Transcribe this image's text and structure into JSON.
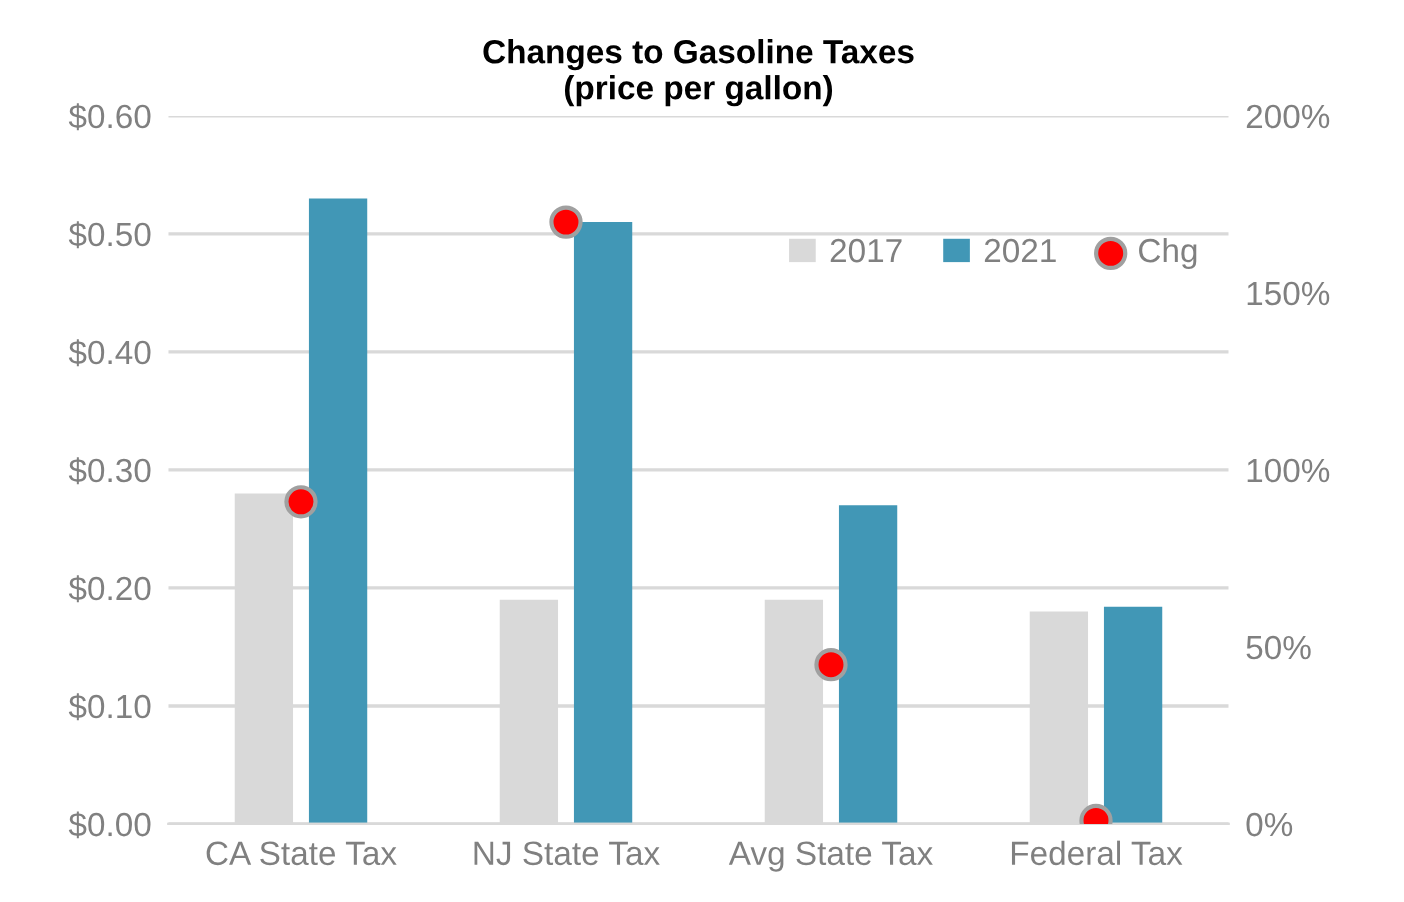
{
  "chart_data": {
    "type": "bar",
    "title": "Changes to Gasoline Taxes\n(price per gallon)",
    "categories": [
      "CA State Tax",
      "NJ State Tax",
      "Avg State Tax",
      "Federal Tax"
    ],
    "series": [
      {
        "name": "2017",
        "color": "#d9d9d9",
        "values": [
          0.28,
          0.19,
          0.19,
          0.18
        ]
      },
      {
        "name": "2021",
        "color": "#4197b6",
        "values": [
          0.53,
          0.51,
          0.27,
          0.184
        ]
      },
      {
        "name": "Chg",
        "type": "scatter",
        "axis": "y2",
        "color": "#ff0000",
        "marker": "circle",
        "values": [
          91,
          170,
          45,
          1
        ]
      }
    ],
    "ylim": [
      0,
      0.6
    ],
    "yticks": [
      {
        "value": 0,
        "label": "$0.00"
      },
      {
        "value": 0.1,
        "label": "$0.10"
      },
      {
        "value": 0.2,
        "label": "$0.20"
      },
      {
        "value": 0.3,
        "label": "$0.30"
      },
      {
        "value": 0.4,
        "label": "$0.40"
      },
      {
        "value": 0.5,
        "label": "$0.50"
      },
      {
        "value": 0.6,
        "label": "$0.60"
      }
    ],
    "y2lim": [
      0,
      200
    ],
    "y2ticks": [
      {
        "value": 0,
        "label": "0%"
      },
      {
        "value": 50,
        "label": "50%"
      },
      {
        "value": 100,
        "label": "100%"
      },
      {
        "value": 150,
        "label": "150%"
      },
      {
        "value": 200,
        "label": "200%"
      }
    ],
    "grid": "y",
    "legend": "top right"
  }
}
